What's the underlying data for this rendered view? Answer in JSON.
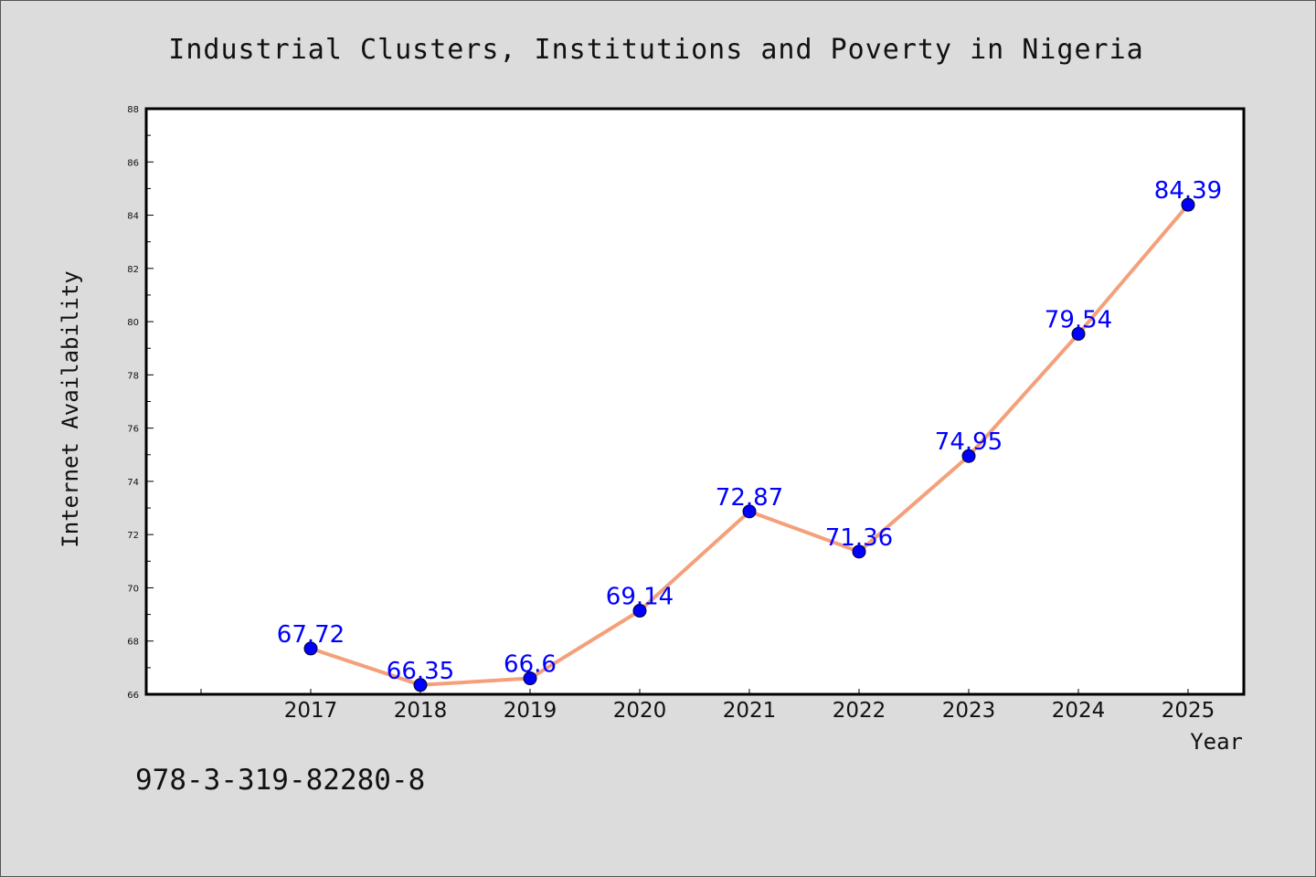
{
  "chart_data": {
    "type": "line",
    "title": "Industrial Clusters, Institutions and Poverty in Nigeria",
    "xlabel": "Year",
    "ylabel": "Internet Availability",
    "categories": [
      "2017",
      "2018",
      "2019",
      "2020",
      "2021",
      "2022",
      "2023",
      "2024",
      "2025"
    ],
    "series": [
      {
        "values": [
          67.72,
          66.35,
          66.6,
          69.14,
          72.87,
          71.36,
          74.95,
          79.54,
          84.39
        ],
        "labels": [
          "67.72",
          "66.35",
          "66.6",
          "69.14",
          "72.87",
          "71.36",
          "74.95",
          "79.54",
          "84.39"
        ]
      }
    ],
    "ylim": [
      66,
      88
    ],
    "yticks": [
      "66",
      "68",
      "70",
      "72",
      "74",
      "76",
      "78",
      "80",
      "82",
      "84",
      "86",
      "88"
    ],
    "grid": false,
    "line_color": "#f4a07a",
    "marker_color": "#0000ff",
    "label_color": "#0000ff",
    "background": "#dcdcdc",
    "plot_background": "#ffffff"
  },
  "footer": {
    "isbn": "978-3-319-82280-8"
  }
}
